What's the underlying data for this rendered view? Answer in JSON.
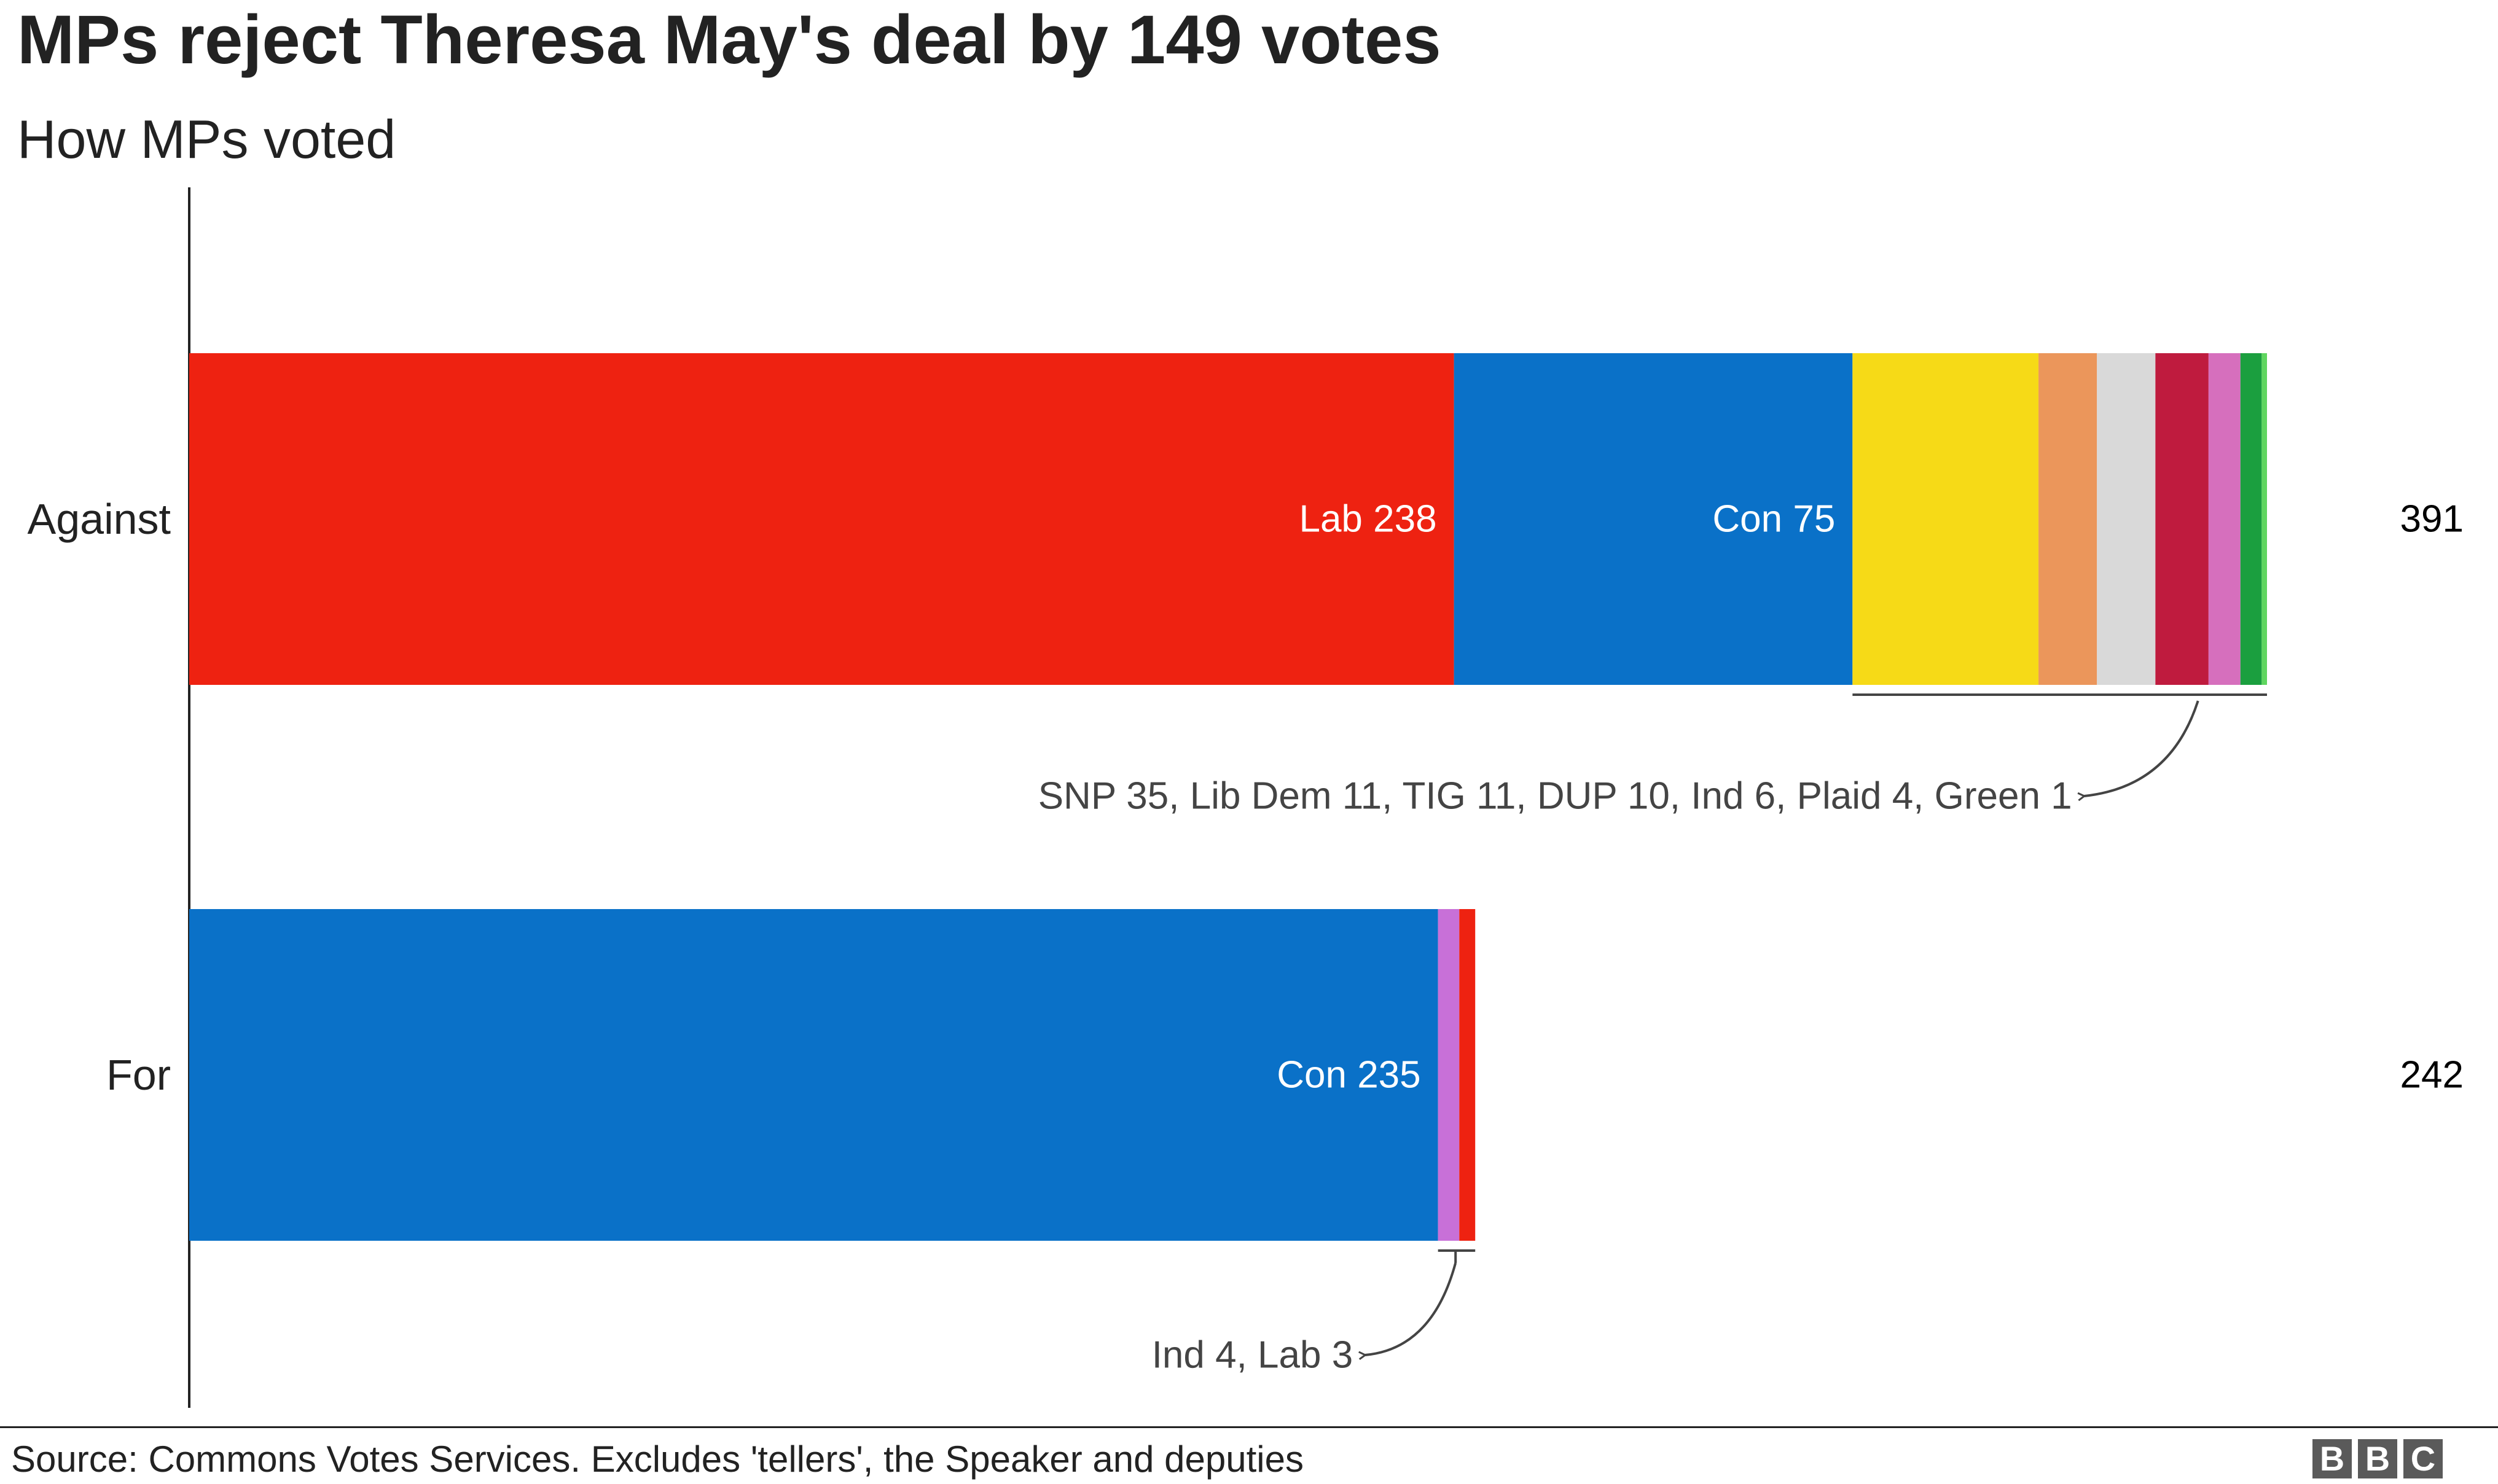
{
  "title": "MPs reject Theresa May's deal by 149 votes",
  "subtitle": "How MPs voted",
  "chart_data": {
    "type": "bar",
    "orientation": "horizontal",
    "stacked": true,
    "xlim": [
      0,
      391
    ],
    "grid": false,
    "categories": [
      "Against",
      "For"
    ],
    "bars": [
      {
        "category": "Against",
        "total": "391",
        "segments": [
          {
            "party": "Lab",
            "value": 238,
            "color": "#ee2211",
            "label": "Lab 238"
          },
          {
            "party": "Con",
            "value": 75,
            "color": "#0a71c8",
            "label": "Con 75"
          },
          {
            "party": "SNP",
            "value": 35,
            "color": "#f6da17",
            "label": ""
          },
          {
            "party": "Lib Dem",
            "value": 11,
            "color": "#eb965b",
            "label": ""
          },
          {
            "party": "TIG",
            "value": 11,
            "color": "#d9d9d9",
            "label": ""
          },
          {
            "party": "DUP",
            "value": 10,
            "color": "#bf1b3e",
            "label": ""
          },
          {
            "party": "Ind",
            "value": 6,
            "color": "#d66fbd",
            "label": ""
          },
          {
            "party": "Plaid",
            "value": 4,
            "color": "#1b9f3f",
            "label": ""
          },
          {
            "party": "Green",
            "value": 1,
            "color": "#5fd65f",
            "label": ""
          }
        ],
        "annotation": "SNP 35, Lib Dem 11, TIG 11, DUP 10, Ind 6, Plaid 4, Green 1"
      },
      {
        "category": "For",
        "total": "242",
        "segments": [
          {
            "party": "Con",
            "value": 235,
            "color": "#0a71c8",
            "label": "Con 235"
          },
          {
            "party": "Ind",
            "value": 4,
            "color": "#c870d8",
            "label": ""
          },
          {
            "party": "Lab",
            "value": 3,
            "color": "#ee2211",
            "label": ""
          }
        ],
        "annotation": "Ind 4, Lab 3"
      }
    ]
  },
  "footer": {
    "source": "Source: Commons Votes Services. Excludes 'tellers', the Speaker and deputies",
    "logo_letters": [
      "B",
      "B",
      "C"
    ]
  }
}
